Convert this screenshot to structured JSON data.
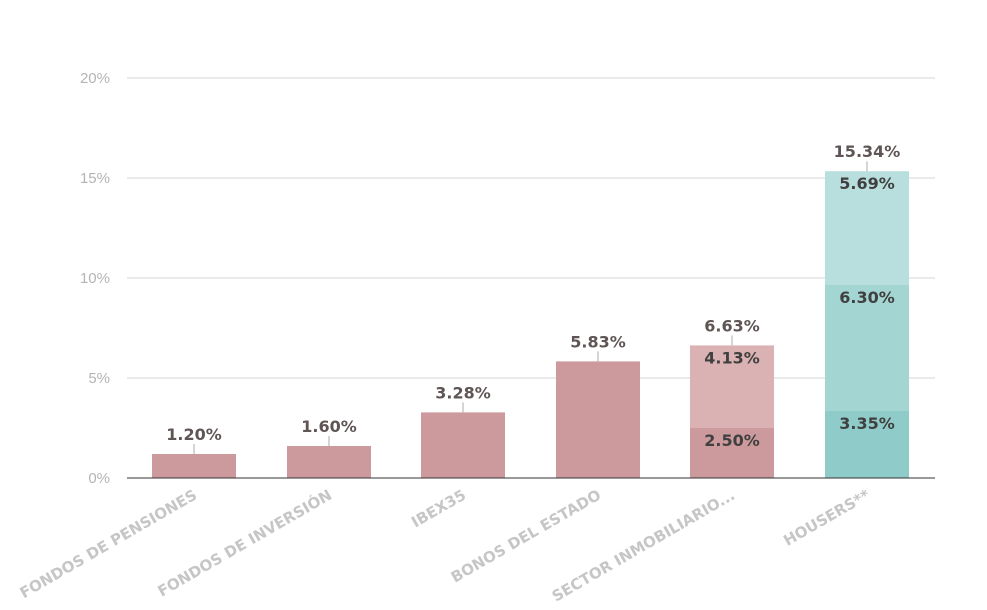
{
  "chart_data": {
    "type": "bar",
    "stacked": true,
    "categories": [
      "FONDOS DE PENSIONES",
      "FONDOS DE INVERSIÓN",
      "IBEX35",
      "BONOS DEL ESTADO",
      "SECTOR INMOBILIARIO...",
      "HOUSERS**"
    ],
    "ylim": [
      0,
      20
    ],
    "yticks": [
      0,
      5,
      10,
      15,
      20
    ],
    "ytick_labels": [
      "0%",
      "5%",
      "10%",
      "15%",
      "20%"
    ],
    "grid": true,
    "legend": "none",
    "bars": [
      {
        "category": "FONDOS DE PENSIONES",
        "total_label": "1.20%",
        "segments": [
          {
            "value": 1.2,
            "label": "",
            "color": "#cc9a9c"
          }
        ]
      },
      {
        "category": "FONDOS DE INVERSIÓN",
        "total_label": "1.60%",
        "segments": [
          {
            "value": 1.6,
            "label": "",
            "color": "#cc9a9c"
          }
        ]
      },
      {
        "category": "IBEX35",
        "total_label": "3.28%",
        "segments": [
          {
            "value": 3.28,
            "label": "",
            "color": "#cc9a9c"
          }
        ]
      },
      {
        "category": "BONOS DEL ESTADO",
        "total_label": "5.83%",
        "segments": [
          {
            "value": 5.83,
            "label": "",
            "color": "#cc9a9c"
          }
        ]
      },
      {
        "category": "SECTOR INMOBILIARIO...",
        "total_label": "6.63%",
        "segments": [
          {
            "value": 2.5,
            "label": "2.50%",
            "color": "#cc9a9c"
          },
          {
            "value": 4.13,
            "label": "4.13%",
            "color": "#dbb2b3"
          }
        ]
      },
      {
        "category": "HOUSERS**",
        "total_label": "15.34%",
        "segments": [
          {
            "value": 3.35,
            "label": "3.35%",
            "color": "#8fcbc8"
          },
          {
            "value": 6.3,
            "label": "6.30%",
            "color": "#a3d5d2"
          },
          {
            "value": 5.69,
            "label": "5.69%",
            "color": "#b8dfdd"
          }
        ]
      }
    ]
  },
  "colors": {
    "grid": "#d4d4d4",
    "axis": "#333333",
    "connector": "#b0a8a8"
  }
}
